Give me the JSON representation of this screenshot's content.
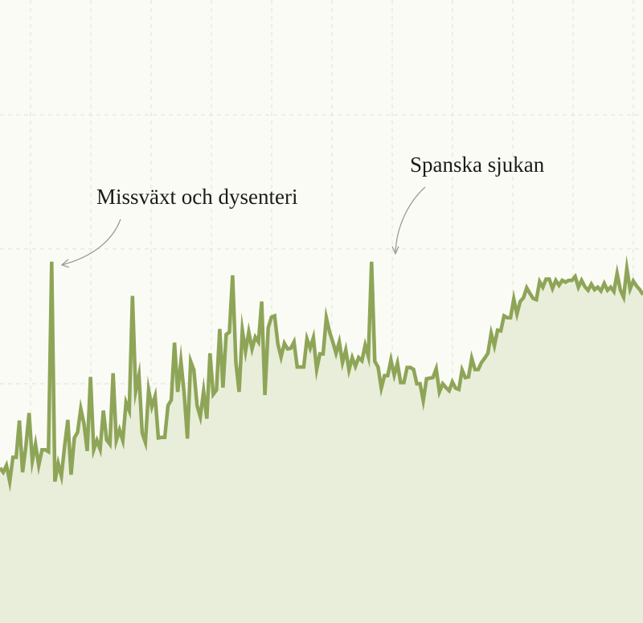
{
  "colors": {
    "background": "#fbfbf6",
    "line": "#8ea558",
    "area": "#e9eedb",
    "grid": "#e2e2da",
    "arrow": "#9a9a9a",
    "text": "#1b1b1b"
  },
  "chart_data": {
    "type": "area",
    "title": "",
    "xlabel": "",
    "ylabel": "",
    "grid": true,
    "grid_style": "dashed",
    "legend": "none",
    "x_range": [
      1,
      200
    ],
    "y_range": [
      0,
      1
    ],
    "series": [
      {
        "x": [
          1,
          2,
          3,
          4,
          5,
          6,
          7,
          8,
          9,
          10,
          11,
          12,
          13,
          14,
          15,
          16,
          17,
          18,
          19,
          20,
          21,
          22,
          23,
          24,
          25,
          26,
          27,
          28,
          29,
          30,
          31,
          32,
          33,
          34,
          35,
          36,
          37,
          38,
          39,
          40,
          41,
          42,
          43,
          44,
          45,
          46,
          47,
          48,
          49,
          50,
          51,
          52,
          53,
          54,
          55,
          56,
          57,
          58,
          59,
          60,
          61,
          62,
          63,
          64,
          65,
          66,
          67,
          68,
          69,
          70,
          71,
          72,
          73,
          74,
          75,
          76,
          77,
          78,
          79,
          80,
          81,
          82,
          83,
          84,
          85,
          86,
          87,
          88,
          89,
          90,
          91,
          92,
          93,
          94,
          95,
          96,
          97,
          98,
          99,
          100,
          101,
          102,
          103,
          104,
          105,
          106,
          107,
          108,
          109,
          110,
          111,
          112,
          113,
          114,
          115,
          116,
          117,
          118,
          119,
          120,
          121,
          122,
          123,
          124,
          125,
          126,
          127,
          128,
          129,
          130,
          131,
          132,
          133,
          134,
          135,
          136,
          137,
          138,
          139,
          140,
          141,
          142,
          143,
          144,
          145,
          146,
          147,
          148,
          149,
          150,
          151,
          152,
          153,
          154,
          155,
          156,
          157,
          158,
          159,
          160,
          161,
          162,
          163,
          164,
          165,
          166,
          167,
          168,
          169,
          170,
          171,
          172,
          173,
          174,
          175,
          176,
          177,
          178,
          179,
          180,
          181,
          182,
          183,
          184,
          185,
          186,
          187,
          188,
          189,
          190,
          191,
          192,
          193,
          194,
          195,
          196,
          197,
          198,
          199,
          200
        ],
        "y": [
          0.249,
          0.242,
          0.253,
          0.227,
          0.266,
          0.266,
          0.325,
          0.242,
          0.284,
          0.337,
          0.26,
          0.287,
          0.253,
          0.278,
          0.278,
          0.275,
          0.58,
          0.227,
          0.256,
          0.236,
          0.284,
          0.326,
          0.238,
          0.297,
          0.306,
          0.344,
          0.32,
          0.276,
          0.395,
          0.278,
          0.293,
          0.279,
          0.341,
          0.294,
          0.287,
          0.401,
          0.293,
          0.31,
          0.293,
          0.354,
          0.341,
          0.525,
          0.372,
          0.398,
          0.305,
          0.29,
          0.374,
          0.347,
          0.364,
          0.297,
          0.298,
          0.298,
          0.349,
          0.358,
          0.45,
          0.371,
          0.42,
          0.369,
          0.296,
          0.42,
          0.406,
          0.349,
          0.331,
          0.372,
          0.328,
          0.433,
          0.367,
          0.374,
          0.472,
          0.378,
          0.463,
          0.467,
          0.558,
          0.418,
          0.371,
          0.47,
          0.436,
          0.467,
          0.44,
          0.459,
          0.451,
          0.516,
          0.366,
          0.474,
          0.491,
          0.493,
          0.448,
          0.427,
          0.449,
          0.44,
          0.441,
          0.451,
          0.411,
          0.411,
          0.411,
          0.456,
          0.441,
          0.458,
          0.407,
          0.432,
          0.432,
          0.49,
          0.467,
          0.451,
          0.433,
          0.451,
          0.418,
          0.438,
          0.406,
          0.426,
          0.412,
          0.426,
          0.421,
          0.446,
          0.428,
          0.58,
          0.42,
          0.411,
          0.377,
          0.397,
          0.397,
          0.422,
          0.398,
          0.417,
          0.386,
          0.386,
          0.41,
          0.41,
          0.407,
          0.384,
          0.384,
          0.357,
          0.392,
          0.393,
          0.394,
          0.408,
          0.371,
          0.384,
          0.378,
          0.373,
          0.387,
          0.377,
          0.375,
          0.406,
          0.394,
          0.395,
          0.425,
          0.407,
          0.407,
          0.418,
          0.425,
          0.433,
          0.465,
          0.445,
          0.47,
          0.469,
          0.493,
          0.49,
          0.49,
          0.52,
          0.496,
          0.516,
          0.522,
          0.538,
          0.529,
          0.521,
          0.519,
          0.548,
          0.539,
          0.552,
          0.552,
          0.537,
          0.55,
          0.542,
          0.55,
          0.547,
          0.55,
          0.55,
          0.556,
          0.539,
          0.55,
          0.54,
          0.534,
          0.544,
          0.535,
          0.539,
          0.533,
          0.545,
          0.534,
          0.539,
          0.532,
          0.561,
          0.534,
          0.523,
          0.569,
          0.536,
          0.549,
          0.541,
          0.535,
          0.527
        ]
      }
    ],
    "annotations": [
      {
        "text": "Missväxt och dysenteri",
        "x": 17,
        "y": 0.58
      },
      {
        "text": "Spanska sjukan",
        "x": 116,
        "y": 0.58
      }
    ]
  }
}
